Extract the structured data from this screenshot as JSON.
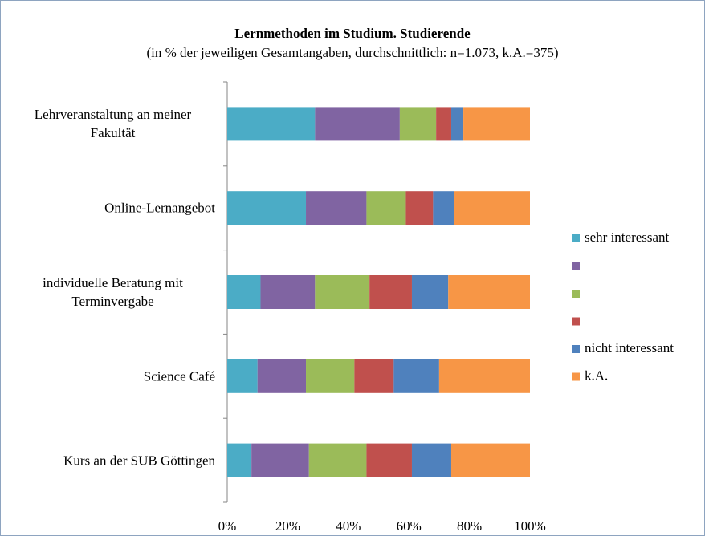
{
  "chart_data": {
    "type": "stacked-bar-horizontal",
    "title": "Lernmethoden im Studium. Studierende",
    "subtitle": "(in % der jeweiligen Gesamtangaben, durchschnittlich: n=1.073, k.A.=375)",
    "categories": [
      "Lehrveranstaltung an meiner Fakultät",
      "Online-Lernangebot",
      "individuelle Beratung mit Terminvergabe",
      "Science Café",
      "Kurs an der SUB Göttingen"
    ],
    "series": [
      {
        "name": "sehr interessant",
        "color": "#4bacc6",
        "values": [
          29,
          26,
          11,
          10,
          8
        ]
      },
      {
        "name": null,
        "color": "#8064a2",
        "values": [
          28,
          20,
          18,
          16,
          19
        ]
      },
      {
        "name": null,
        "color": "#9bbb59",
        "values": [
          12,
          13,
          18,
          16,
          19
        ]
      },
      {
        "name": null,
        "color": "#c0504d",
        "values": [
          5,
          9,
          14,
          13,
          15
        ]
      },
      {
        "name": "nicht interessant",
        "color": "#4f81bd",
        "values": [
          4,
          7,
          12,
          15,
          13
        ]
      },
      {
        "name": "k.A.",
        "color": "#f79646",
        "values": [
          22,
          25,
          27,
          30,
          26
        ]
      }
    ],
    "xlim": [
      0,
      100
    ],
    "xticks": [
      {
        "value": 0,
        "label": "0%"
      },
      {
        "value": 20,
        "label": "20%"
      },
      {
        "value": 40,
        "label": "40%"
      },
      {
        "value": 60,
        "label": "60%"
      },
      {
        "value": 80,
        "label": "80%"
      },
      {
        "value": 100,
        "label": "100%"
      }
    ],
    "legend": "right"
  }
}
